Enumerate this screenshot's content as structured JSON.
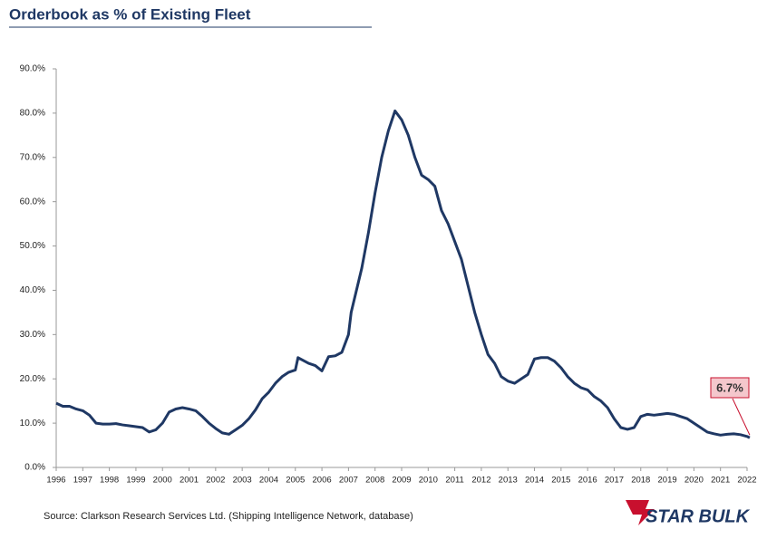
{
  "chart_data": {
    "type": "line",
    "title": "Orderbook as % of Existing Fleet",
    "source": "Source: Clarkson Research Services Ltd. (Shipping Intelligence Network, database)",
    "logo": "STAR BULK",
    "annotation": "6.7%",
    "series": [
      {
        "name": "Orderbook as % of Existing Fleet",
        "color": "#1f3864",
        "x": [
          1996.0,
          1996.25,
          1996.5,
          1996.75,
          1997.0,
          1997.25,
          1997.5,
          1997.75,
          1998.0,
          1998.25,
          1998.5,
          1998.75,
          1999.0,
          1999.25,
          1999.5,
          1999.75,
          2000.0,
          2000.25,
          2000.5,
          2000.75,
          2001.0,
          2001.25,
          2001.5,
          2001.75,
          2002.0,
          2002.25,
          2002.5,
          2002.75,
          2003.0,
          2003.25,
          2003.5,
          2003.75,
          2004.0,
          2004.25,
          2004.5,
          2004.75,
          2005.0,
          2005.1,
          2005.5,
          2005.75,
          2006.0,
          2006.25,
          2006.5,
          2006.75,
          2007.0,
          2007.1,
          2007.5,
          2007.75,
          2008.0,
          2008.25,
          2008.5,
          2008.75,
          2009.0,
          2009.25,
          2009.5,
          2009.75,
          2010.0,
          2010.25,
          2010.5,
          2010.75,
          2011.0,
          2011.25,
          2011.5,
          2011.75,
          2012.0,
          2012.25,
          2012.5,
          2012.75,
          2013.0,
          2013.25,
          2013.5,
          2013.75,
          2014.0,
          2014.25,
          2014.5,
          2014.75,
          2015.0,
          2015.25,
          2015.5,
          2015.75,
          2016.0,
          2016.25,
          2016.5,
          2016.75,
          2017.0,
          2017.25,
          2017.5,
          2017.75,
          2018.0,
          2018.25,
          2018.5,
          2018.75,
          2019.0,
          2019.25,
          2019.5,
          2019.75,
          2020.0,
          2020.25,
          2020.5,
          2020.75,
          2021.0,
          2021.25,
          2021.5,
          2021.75,
          2022.0,
          2022.1
        ],
        "values": [
          14.5,
          13.8,
          13.8,
          13.2,
          12.8,
          11.8,
          10.0,
          9.8,
          9.8,
          9.9,
          9.6,
          9.4,
          9.2,
          9.0,
          8.0,
          8.5,
          10.0,
          12.5,
          13.2,
          13.5,
          13.2,
          12.8,
          11.5,
          10.0,
          8.8,
          7.8,
          7.5,
          8.5,
          9.5,
          11.0,
          13.0,
          15.5,
          17.0,
          19.0,
          20.5,
          21.5,
          22.0,
          24.8,
          23.5,
          23.0,
          21.8,
          25.0,
          25.2,
          26.0,
          30.0,
          35.0,
          45.0,
          53.0,
          62.0,
          70.0,
          76.0,
          80.5,
          78.5,
          75.0,
          70.0,
          66.0,
          65.0,
          63.5,
          58.0,
          55.0,
          51.0,
          47.0,
          41.0,
          35.0,
          30.0,
          25.5,
          23.5,
          20.5,
          19.5,
          19.0,
          20.0,
          21.0,
          24.5,
          24.8,
          24.8,
          24.0,
          22.5,
          20.5,
          19.0,
          18.0,
          17.5,
          16.0,
          15.0,
          13.5,
          11.0,
          9.0,
          8.6,
          9.0,
          11.5,
          12.0,
          11.8,
          12.0,
          12.2,
          12.0,
          11.5,
          11.0,
          10.0,
          9.0,
          8.0,
          7.6,
          7.3,
          7.5,
          7.6,
          7.4,
          7.0,
          6.7
        ]
      }
    ],
    "xlim": [
      1996,
      2022
    ],
    "xticks": [
      1996,
      1997,
      1998,
      1999,
      2000,
      2001,
      2002,
      2003,
      2004,
      2005,
      2006,
      2007,
      2008,
      2009,
      2010,
      2011,
      2012,
      2013,
      2014,
      2015,
      2016,
      2017,
      2018,
      2019,
      2020,
      2021,
      2022
    ],
    "ylim": [
      0,
      90
    ],
    "yticks": [
      {
        "value": 0,
        "label": "0.0%"
      },
      {
        "value": 10,
        "label": "10.0%"
      },
      {
        "value": 20,
        "label": "20.0%"
      },
      {
        "value": 30,
        "label": "30.0%"
      },
      {
        "value": 40,
        "label": "40.0%"
      },
      {
        "value": 50,
        "label": "50.0%"
      },
      {
        "value": 60,
        "label": "60.0%"
      },
      {
        "value": 70,
        "label": "70.0%"
      },
      {
        "value": 80,
        "label": "80.0%"
      },
      {
        "value": 90,
        "label": "90.0%"
      }
    ],
    "grid": false
  }
}
